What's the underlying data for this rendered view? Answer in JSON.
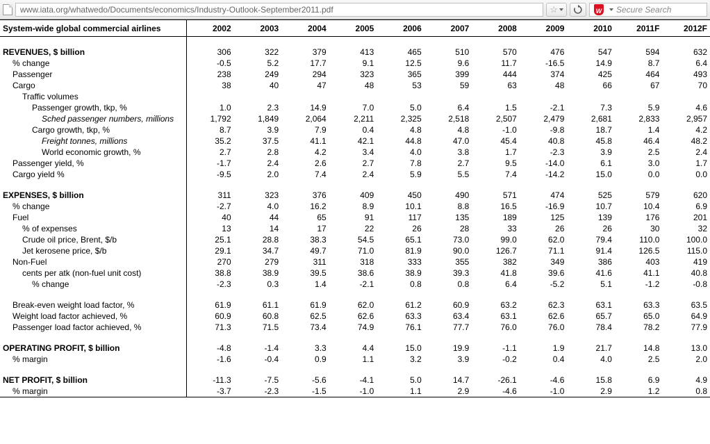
{
  "chrome": {
    "url": "www.iata.org/whatwedo/Documents/economics/Industry-Outlook-September2011.pdf",
    "search_placeholder": "Secure Search"
  },
  "table": {
    "header_label": "System-wide global commercial airlines",
    "years": [
      "2002",
      "2003",
      "2004",
      "2005",
      "2006",
      "2007",
      "2008",
      "2009",
      "2010",
      "2011F",
      "2012F"
    ],
    "rows": [
      {
        "type": "blank"
      },
      {
        "type": "section",
        "label": "REVENUES, $ billion",
        "values": [
          "306",
          "322",
          "379",
          "413",
          "465",
          "510",
          "570",
          "476",
          "547",
          "594",
          "632"
        ]
      },
      {
        "type": "data",
        "indent": 1,
        "label": "% change",
        "values": [
          "-0.5",
          "5.2",
          "17.7",
          "9.1",
          "12.5",
          "9.6",
          "11.7",
          "-16.5",
          "14.9",
          "8.7",
          "6.4"
        ]
      },
      {
        "type": "data",
        "indent": 1,
        "label": "Passenger",
        "values": [
          "238",
          "249",
          "294",
          "323",
          "365",
          "399",
          "444",
          "374",
          "425",
          "464",
          "493"
        ]
      },
      {
        "type": "data",
        "indent": 1,
        "label": "Cargo",
        "values": [
          "38",
          "40",
          "47",
          "48",
          "53",
          "59",
          "63",
          "48",
          "66",
          "67",
          "70"
        ]
      },
      {
        "type": "data",
        "indent": 2,
        "label": "Traffic volumes",
        "values": [
          "",
          "",
          "",
          "",
          "",
          "",
          "",
          "",
          "",
          "",
          ""
        ]
      },
      {
        "type": "data",
        "indent": 3,
        "label": "Passenger growth, tkp, %",
        "values": [
          "1.0",
          "2.3",
          "14.9",
          "7.0",
          "5.0",
          "6.4",
          "1.5",
          "-2.1",
          "7.3",
          "5.9",
          "4.6"
        ]
      },
      {
        "type": "data",
        "indent": 4,
        "italic": true,
        "label": "Sched passenger numbers, millions",
        "values": [
          "1,792",
          "1,849",
          "2,064",
          "2,211",
          "2,325",
          "2,518",
          "2,507",
          "2,479",
          "2,681",
          "2,833",
          "2,957"
        ]
      },
      {
        "type": "data",
        "indent": 3,
        "label": "Cargo growth, tkp, %",
        "values": [
          "8.7",
          "3.9",
          "7.9",
          "0.4",
          "4.8",
          "4.8",
          "-1.0",
          "-9.8",
          "18.7",
          "1.4",
          "4.2"
        ]
      },
      {
        "type": "data",
        "indent": 4,
        "italic": true,
        "label": "Freight tonnes, millions",
        "values": [
          "35.2",
          "37.5",
          "41.1",
          "42.1",
          "44.8",
          "47.0",
          "45.4",
          "40.8",
          "45.8",
          "46.4",
          "48.2"
        ]
      },
      {
        "type": "data",
        "indent": 4,
        "label": "World economic growth, %",
        "values": [
          "2.7",
          "2.8",
          "4.2",
          "3.4",
          "4.0",
          "3.8",
          "1.7",
          "-2.3",
          "3.9",
          "2.5",
          "2.4"
        ]
      },
      {
        "type": "data",
        "indent": 1,
        "label": "Passenger yield, %",
        "values": [
          "-1.7",
          "2.4",
          "2.6",
          "2.7",
          "7.8",
          "2.7",
          "9.5",
          "-14.0",
          "6.1",
          "3.0",
          "1.7"
        ]
      },
      {
        "type": "data",
        "indent": 1,
        "label": "Cargo yield %",
        "values": [
          "-9.5",
          "2.0",
          "7.4",
          "2.4",
          "5.9",
          "5.5",
          "7.4",
          "-14.2",
          "15.0",
          "0.0",
          "0.0"
        ]
      },
      {
        "type": "blank"
      },
      {
        "type": "section",
        "label": "EXPENSES, $ billion",
        "values": [
          "311",
          "323",
          "376",
          "409",
          "450",
          "490",
          "571",
          "474",
          "525",
          "579",
          "620"
        ]
      },
      {
        "type": "data",
        "indent": 1,
        "label": "% change",
        "values": [
          "-2.7",
          "4.0",
          "16.2",
          "8.9",
          "10.1",
          "8.8",
          "16.5",
          "-16.9",
          "10.7",
          "10.4",
          "6.9"
        ]
      },
      {
        "type": "data",
        "indent": 1,
        "label": "Fuel",
        "values": [
          "40",
          "44",
          "65",
          "91",
          "117",
          "135",
          "189",
          "125",
          "139",
          "176",
          "201"
        ]
      },
      {
        "type": "data",
        "indent": 2,
        "label": "% of expenses",
        "values": [
          "13",
          "14",
          "17",
          "22",
          "26",
          "28",
          "33",
          "26",
          "26",
          "30",
          "32"
        ]
      },
      {
        "type": "data",
        "indent": 2,
        "label": "Crude oil price, Brent, $/b",
        "values": [
          "25.1",
          "28.8",
          "38.3",
          "54.5",
          "65.1",
          "73.0",
          "99.0",
          "62.0",
          "79.4",
          "110.0",
          "100.0"
        ]
      },
      {
        "type": "data",
        "indent": 2,
        "label": "Jet kerosene price, $/b",
        "values": [
          "29.1",
          "34.7",
          "49.7",
          "71.0",
          "81.9",
          "90.0",
          "126.7",
          "71.1",
          "91.4",
          "126.5",
          "115.0"
        ]
      },
      {
        "type": "data",
        "indent": 1,
        "label": "Non-Fuel",
        "values": [
          "270",
          "279",
          "311",
          "318",
          "333",
          "355",
          "382",
          "349",
          "386",
          "403",
          "419"
        ]
      },
      {
        "type": "data",
        "indent": 2,
        "label": "cents per atk (non-fuel unit cost)",
        "values": [
          "38.8",
          "38.9",
          "39.5",
          "38.6",
          "38.9",
          "39.3",
          "41.8",
          "39.6",
          "41.6",
          "41.1",
          "40.8"
        ]
      },
      {
        "type": "data",
        "indent": 3,
        "label": "% change",
        "values": [
          "-2.3",
          "0.3",
          "1.4",
          "-2.1",
          "0.8",
          "0.8",
          "6.4",
          "-5.2",
          "5.1",
          "-1.2",
          "-0.8"
        ]
      },
      {
        "type": "blank"
      },
      {
        "type": "data",
        "indent": 1,
        "label": "Break-even weight load factor, %",
        "values": [
          "61.9",
          "61.1",
          "61.9",
          "62.0",
          "61.2",
          "60.9",
          "63.2",
          "62.3",
          "63.1",
          "63.3",
          "63.5"
        ]
      },
      {
        "type": "data",
        "indent": 1,
        "label": "Weight load factor achieved, %",
        "values": [
          "60.9",
          "60.8",
          "62.5",
          "62.6",
          "63.3",
          "63.4",
          "63.1",
          "62.6",
          "65.7",
          "65.0",
          "64.9"
        ]
      },
      {
        "type": "data",
        "indent": 1,
        "label": "Passenger load factor achieved, %",
        "values": [
          "71.3",
          "71.5",
          "73.4",
          "74.9",
          "76.1",
          "77.7",
          "76.0",
          "76.0",
          "78.4",
          "78.2",
          "77.9"
        ]
      },
      {
        "type": "blank"
      },
      {
        "type": "section",
        "label": "OPERATING PROFIT, $ billion",
        "values": [
          "-4.8",
          "-1.4",
          "3.3",
          "4.4",
          "15.0",
          "19.9",
          "-1.1",
          "1.9",
          "21.7",
          "14.8",
          "13.0"
        ]
      },
      {
        "type": "data",
        "indent": 1,
        "label": "% margin",
        "values": [
          "-1.6",
          "-0.4",
          "0.9",
          "1.1",
          "3.2",
          "3.9",
          "-0.2",
          "0.4",
          "4.0",
          "2.5",
          "2.0"
        ]
      },
      {
        "type": "blank"
      },
      {
        "type": "section",
        "label": "NET PROFIT, $ billion",
        "values": [
          "-11.3",
          "-7.5",
          "-5.6",
          "-4.1",
          "5.0",
          "14.7",
          "-26.1",
          "-4.6",
          "15.8",
          "6.9",
          "4.9"
        ]
      },
      {
        "type": "data",
        "indent": 1,
        "label": "% margin",
        "values": [
          "-3.7",
          "-2.3",
          "-1.5",
          "-1.0",
          "1.1",
          "2.9",
          "-4.6",
          "-1.0",
          "2.9",
          "1.2",
          "0.8"
        ]
      }
    ]
  }
}
